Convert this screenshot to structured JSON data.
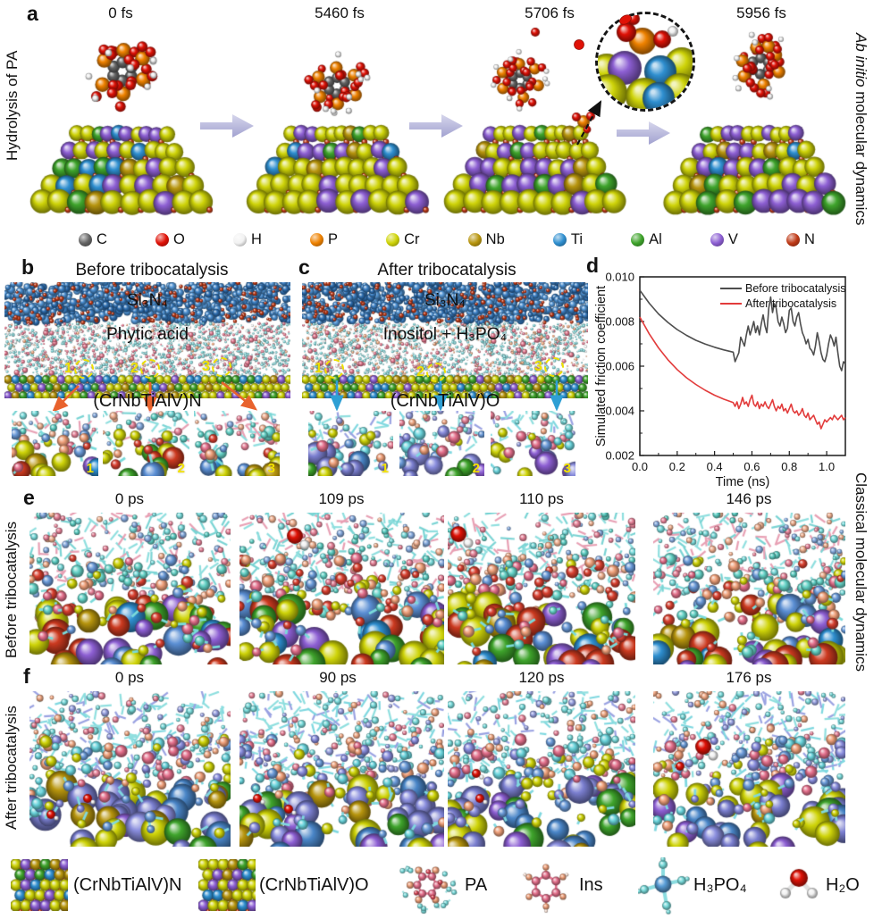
{
  "panel_a": {
    "label": "a",
    "left_axis": "Hydrolysis of PA",
    "right_axis": {
      "italic": "Ab initio",
      "rest": " molecular dynamics"
    },
    "frames": [
      {
        "time": "0 fs"
      },
      {
        "time": "5460 fs"
      },
      {
        "time": "5706 fs"
      },
      {
        "time": "5956 fs"
      }
    ],
    "atoms": [
      {
        "symbol": "C",
        "color": "#646464"
      },
      {
        "symbol": "O",
        "color": "#e01207"
      },
      {
        "symbol": "H",
        "color": "#f2f2f2"
      },
      {
        "symbol": "P",
        "color": "#ef8200"
      },
      {
        "symbol": "Cr",
        "color": "#cfd409"
      },
      {
        "symbol": "Nb",
        "color": "#b7950e"
      },
      {
        "symbol": "Ti",
        "color": "#2f8fd0"
      },
      {
        "symbol": "Al",
        "color": "#3fa42c"
      },
      {
        "symbol": "V",
        "color": "#8d5fd3"
      },
      {
        "symbol": "N",
        "color": "#bf3a17"
      }
    ]
  },
  "panel_b": {
    "label": "b",
    "title": "Before tribocatalysis",
    "top_layer": "Si₃N₄",
    "middle_layer": "Phytic acid",
    "surface_label": "(CrNbTiAlV)N",
    "site_numbers": [
      "1",
      "2",
      "3"
    ],
    "inset_numbers": [
      "1",
      "2",
      "3"
    ],
    "arrow_color": "#e8622d"
  },
  "panel_c": {
    "label": "c",
    "title": "After tribocatalysis",
    "top_layer": "Si₃N₄",
    "middle_layer": "Inositol + H₃PO₄",
    "surface_label": "(CrNbTiAlV)O",
    "site_numbers": [
      "1",
      "2",
      "3"
    ],
    "inset_numbers": [
      "1",
      "2",
      "3"
    ],
    "arrow_color": "#2e9fd4"
  },
  "panel_d": {
    "label": "d",
    "right_axis": "Classical molecular dynamics"
  },
  "chart_data": {
    "type": "line",
    "title": "",
    "xlabel": "Time (ns)",
    "ylabel": "Simulated friction coefficient",
    "xlim": [
      0,
      1.1
    ],
    "ylim": [
      0.002,
      0.01
    ],
    "xticks": [
      0.0,
      0.2,
      0.4,
      0.6,
      0.8,
      1.0
    ],
    "yticks": [
      0.002,
      0.004,
      0.006,
      0.008,
      0.01
    ],
    "grid": false,
    "legend_position": "top-right",
    "series": [
      {
        "name": "Before tribocatalysis",
        "color": "#4d4d4d",
        "points": [
          [
            0,
            0.0094
          ],
          [
            0.05,
            0.00882
          ],
          [
            0.1,
            0.00834
          ],
          [
            0.15,
            0.00796
          ],
          [
            0.2,
            0.00764
          ],
          [
            0.25,
            0.00738
          ],
          [
            0.3,
            0.00716
          ],
          [
            0.35,
            0.00699
          ],
          [
            0.4,
            0.00685
          ],
          [
            0.45,
            0.00673
          ],
          [
            0.5,
            0.00663
          ],
          [
            0.51,
            0.0062
          ],
          [
            0.52,
            0.0064
          ],
          [
            0.53,
            0.0066
          ],
          [
            0.54,
            0.0073
          ],
          [
            0.55,
            0.0071
          ],
          [
            0.56,
            0.0069
          ],
          [
            0.57,
            0.0074
          ],
          [
            0.58,
            0.0078
          ],
          [
            0.59,
            0.0074
          ],
          [
            0.6,
            0.0077
          ],
          [
            0.61,
            0.008
          ],
          [
            0.62,
            0.0075
          ],
          [
            0.63,
            0.0078
          ],
          [
            0.64,
            0.0074
          ],
          [
            0.65,
            0.0079
          ],
          [
            0.66,
            0.0083
          ],
          [
            0.67,
            0.0078
          ],
          [
            0.68,
            0.0075
          ],
          [
            0.69,
            0.0086
          ],
          [
            0.7,
            0.0091
          ],
          [
            0.71,
            0.0084
          ],
          [
            0.72,
            0.0088
          ],
          [
            0.73,
            0.0086
          ],
          [
            0.74,
            0.008
          ],
          [
            0.75,
            0.0078
          ],
          [
            0.76,
            0.0082
          ],
          [
            0.77,
            0.0079
          ],
          [
            0.78,
            0.0075
          ],
          [
            0.79,
            0.0077
          ],
          [
            0.8,
            0.0085
          ],
          [
            0.81,
            0.0086
          ],
          [
            0.82,
            0.008
          ],
          [
            0.83,
            0.0078
          ],
          [
            0.84,
            0.0082
          ],
          [
            0.85,
            0.0084
          ],
          [
            0.86,
            0.0079
          ],
          [
            0.87,
            0.0075
          ],
          [
            0.88,
            0.0073
          ],
          [
            0.89,
            0.007
          ],
          [
            0.9,
            0.0072
          ],
          [
            0.91,
            0.0068
          ],
          [
            0.92,
            0.0067
          ],
          [
            0.93,
            0.0065
          ],
          [
            0.94,
            0.0069
          ],
          [
            0.95,
            0.0075
          ],
          [
            0.96,
            0.0071
          ],
          [
            0.97,
            0.0066
          ],
          [
            0.98,
            0.0063
          ],
          [
            0.99,
            0.0062
          ],
          [
            1.0,
            0.0065
          ],
          [
            1.01,
            0.007
          ],
          [
            1.02,
            0.0074
          ],
          [
            1.03,
            0.0072
          ],
          [
            1.04,
            0.0069
          ],
          [
            1.05,
            0.0073
          ],
          [
            1.06,
            0.0066
          ],
          [
            1.07,
            0.006
          ],
          [
            1.08,
            0.0058
          ],
          [
            1.09,
            0.0062
          ],
          [
            1.1,
            0.0061
          ]
        ]
      },
      {
        "name": "After tribocatalysis",
        "color": "#e23b3b",
        "points": [
          [
            0,
            0.0082
          ],
          [
            0.05,
            0.00745
          ],
          [
            0.1,
            0.00682
          ],
          [
            0.15,
            0.00629
          ],
          [
            0.2,
            0.00585
          ],
          [
            0.25,
            0.00548
          ],
          [
            0.3,
            0.00518
          ],
          [
            0.35,
            0.00492
          ],
          [
            0.4,
            0.0047
          ],
          [
            0.45,
            0.00452
          ],
          [
            0.5,
            0.00437
          ],
          [
            0.51,
            0.0042
          ],
          [
            0.52,
            0.0044
          ],
          [
            0.53,
            0.0041
          ],
          [
            0.54,
            0.0043
          ],
          [
            0.55,
            0.0046
          ],
          [
            0.56,
            0.0043
          ],
          [
            0.57,
            0.0044
          ],
          [
            0.58,
            0.0042
          ],
          [
            0.59,
            0.0045
          ],
          [
            0.6,
            0.0047
          ],
          [
            0.61,
            0.0043
          ],
          [
            0.62,
            0.0042
          ],
          [
            0.63,
            0.0044
          ],
          [
            0.64,
            0.0041
          ],
          [
            0.65,
            0.0043
          ],
          [
            0.66,
            0.0042
          ],
          [
            0.67,
            0.0044
          ],
          [
            0.68,
            0.0042
          ],
          [
            0.69,
            0.0041
          ],
          [
            0.7,
            0.0043
          ],
          [
            0.71,
            0.0045
          ],
          [
            0.72,
            0.0042
          ],
          [
            0.73,
            0.004
          ],
          [
            0.74,
            0.0042
          ],
          [
            0.75,
            0.0041
          ],
          [
            0.76,
            0.0043
          ],
          [
            0.77,
            0.004
          ],
          [
            0.78,
            0.0041
          ],
          [
            0.79,
            0.0039
          ],
          [
            0.8,
            0.0041
          ],
          [
            0.81,
            0.0043
          ],
          [
            0.82,
            0.004
          ],
          [
            0.83,
            0.0039
          ],
          [
            0.84,
            0.004
          ],
          [
            0.85,
            0.0038
          ],
          [
            0.86,
            0.0039
          ],
          [
            0.87,
            0.0041
          ],
          [
            0.88,
            0.0038
          ],
          [
            0.89,
            0.0037
          ],
          [
            0.9,
            0.0039
          ],
          [
            0.91,
            0.0036
          ],
          [
            0.92,
            0.0037
          ],
          [
            0.93,
            0.0038
          ],
          [
            0.94,
            0.0036
          ],
          [
            0.95,
            0.0034
          ],
          [
            0.96,
            0.0035
          ],
          [
            0.97,
            0.0032
          ],
          [
            0.98,
            0.0034
          ],
          [
            0.99,
            0.0036
          ],
          [
            1.0,
            0.0035
          ],
          [
            1.01,
            0.0036
          ],
          [
            1.02,
            0.0037
          ],
          [
            1.03,
            0.0036
          ],
          [
            1.04,
            0.0038
          ],
          [
            1.05,
            0.0037
          ],
          [
            1.06,
            0.0036
          ],
          [
            1.07,
            0.0037
          ],
          [
            1.08,
            0.0038
          ],
          [
            1.09,
            0.0036
          ],
          [
            1.1,
            0.0037
          ]
        ]
      }
    ]
  },
  "panel_e": {
    "label": "e",
    "left_axis": "Before tribocatalysis",
    "frames": [
      {
        "time": "0 ps"
      },
      {
        "time": "109 ps"
      },
      {
        "time": "110 ps"
      },
      {
        "time": "146 ps"
      }
    ]
  },
  "panel_f": {
    "label": "f",
    "left_axis": "After tribocatalysis",
    "frames": [
      {
        "time": "0 ps"
      },
      {
        "time": "90 ps"
      },
      {
        "time": "120 ps"
      },
      {
        "time": "176 ps"
      }
    ]
  },
  "bottom_legend": {
    "items": [
      {
        "label": "(CrNbTiAlV)N",
        "icon": "nitride-surface"
      },
      {
        "label": "(CrNbTiAlV)O",
        "icon": "oxide-surface"
      },
      {
        "label": "PA",
        "icon": "pa-molecule"
      },
      {
        "label": "Ins",
        "icon": "inositol-molecule"
      },
      {
        "label": "H₃PO₄",
        "icon": "phosphoric-acid-molecule"
      },
      {
        "label": "H₂O",
        "icon": "water-molecule"
      }
    ]
  }
}
